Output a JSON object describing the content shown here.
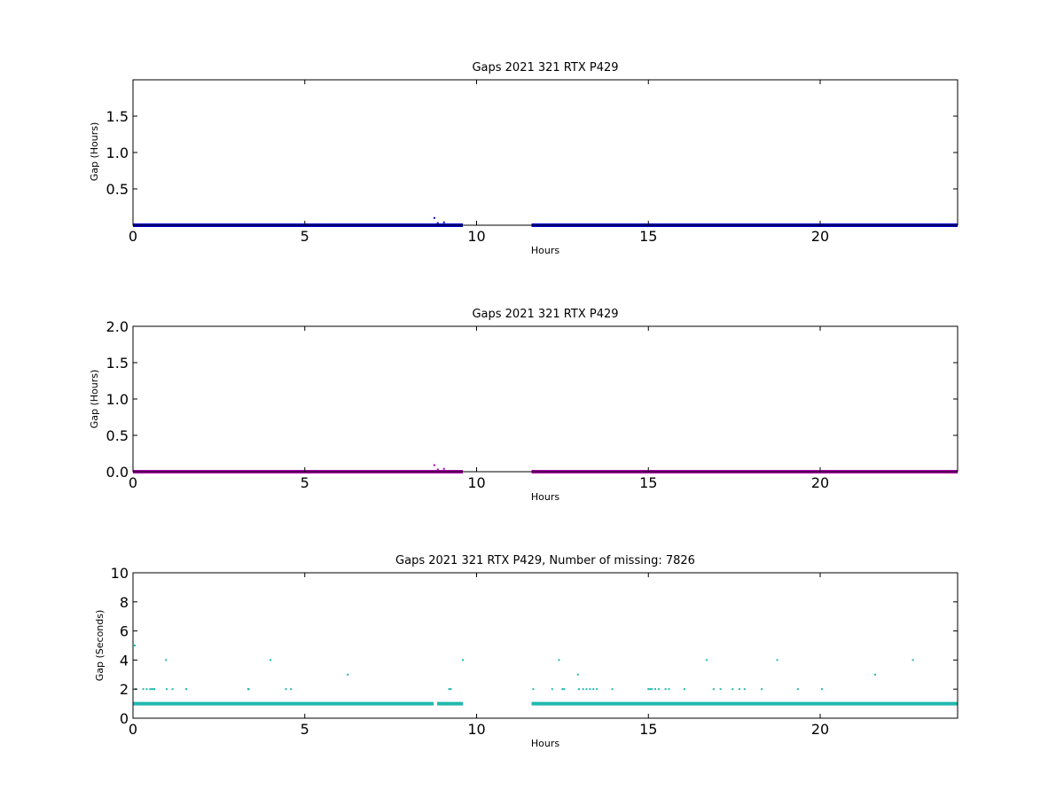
{
  "chart_data": [
    {
      "type": "scatter",
      "title": "Gaps 2021 321 RTX  P429",
      "xlabel": "Hours",
      "ylabel": "Gap (Hours)",
      "xlim": [
        0,
        24
      ],
      "ylim": [
        0,
        2.0
      ],
      "x_ticks": [
        "0",
        "5",
        "10",
        "15",
        "20"
      ],
      "y_ticks": [
        "0.5",
        "1.0",
        "1.5"
      ],
      "grid": false,
      "series": [
        {
          "color": "#0000cc",
          "segments": [
            {
              "x_start": 0.0,
              "x_end": 9.6,
              "y": 0.0
            },
            {
              "x_start": 11.6,
              "x_end": 24.0,
              "y": 0.0
            }
          ],
          "points": [
            {
              "x": 8.77,
              "y": 0.1
            },
            {
              "x": 8.87,
              "y": 0.03
            },
            {
              "x": 9.05,
              "y": 0.04
            }
          ]
        }
      ]
    },
    {
      "type": "scatter",
      "title": "Gaps 2021 321 RTX  P429",
      "xlabel": "Hours",
      "ylabel": "Gap (Hours)",
      "xlim": [
        0,
        24
      ],
      "ylim": [
        0,
        2.0
      ],
      "x_ticks": [
        "0",
        "5",
        "10",
        "15",
        "20"
      ],
      "y_ticks": [
        "0.0",
        "0.5",
        "1.0",
        "1.5",
        "2.0"
      ],
      "grid": false,
      "series": [
        {
          "color": "#aa00aa",
          "segments": [
            {
              "x_start": 0.0,
              "x_end": 9.6,
              "y": 0.0
            },
            {
              "x_start": 11.6,
              "x_end": 24.0,
              "y": 0.0
            }
          ],
          "points": [
            {
              "x": 8.77,
              "y": 0.09
            },
            {
              "x": 8.87,
              "y": 0.03
            },
            {
              "x": 9.05,
              "y": 0.04
            }
          ]
        }
      ]
    },
    {
      "type": "scatter",
      "title": "Gaps 2021 321 RTX  P429, Number of missing: 7826",
      "xlabel": "Hours",
      "ylabel": "Gap (Seconds)",
      "xlim": [
        0,
        24
      ],
      "ylim": [
        0,
        10
      ],
      "x_ticks": [
        "0",
        "5",
        "10",
        "15",
        "20"
      ],
      "y_ticks": [
        "0",
        "2",
        "4",
        "6",
        "8",
        "10"
      ],
      "grid": false,
      "series": [
        {
          "color": "#20b8b0",
          "segments": [
            {
              "x_start": 0.0,
              "x_end": 8.75,
              "y": 1
            },
            {
              "x_start": 8.85,
              "x_end": 9.6,
              "y": 1
            },
            {
              "x_start": 11.6,
              "x_end": 24.0,
              "y": 1
            }
          ],
          "points": [
            {
              "x": 0.05,
              "y": 5
            },
            {
              "x": 0.08,
              "y": 2
            },
            {
              "x": 0.3,
              "y": 2
            },
            {
              "x": 0.4,
              "y": 2
            },
            {
              "x": 0.5,
              "y": 2
            },
            {
              "x": 0.55,
              "y": 2
            },
            {
              "x": 0.6,
              "y": 2
            },
            {
              "x": 0.62,
              "y": 2
            },
            {
              "x": 0.96,
              "y": 4
            },
            {
              "x": 0.98,
              "y": 2
            },
            {
              "x": 1.15,
              "y": 2
            },
            {
              "x": 1.55,
              "y": 2
            },
            {
              "x": 3.35,
              "y": 2
            },
            {
              "x": 3.37,
              "y": 2
            },
            {
              "x": 4.0,
              "y": 4
            },
            {
              "x": 4.45,
              "y": 2
            },
            {
              "x": 4.6,
              "y": 2
            },
            {
              "x": 6.25,
              "y": 3
            },
            {
              "x": 9.2,
              "y": 2
            },
            {
              "x": 9.25,
              "y": 2
            },
            {
              "x": 9.6,
              "y": 4
            },
            {
              "x": 11.65,
              "y": 2
            },
            {
              "x": 12.2,
              "y": 2
            },
            {
              "x": 12.4,
              "y": 4
            },
            {
              "x": 12.5,
              "y": 2
            },
            {
              "x": 12.55,
              "y": 2
            },
            {
              "x": 12.95,
              "y": 3
            },
            {
              "x": 12.98,
              "y": 2
            },
            {
              "x": 13.1,
              "y": 2
            },
            {
              "x": 13.2,
              "y": 2
            },
            {
              "x": 13.3,
              "y": 2
            },
            {
              "x": 13.4,
              "y": 2
            },
            {
              "x": 13.5,
              "y": 2
            },
            {
              "x": 13.95,
              "y": 2
            },
            {
              "x": 15.0,
              "y": 2
            },
            {
              "x": 15.05,
              "y": 2
            },
            {
              "x": 15.1,
              "y": 2
            },
            {
              "x": 15.2,
              "y": 2
            },
            {
              "x": 15.3,
              "y": 2
            },
            {
              "x": 15.5,
              "y": 2
            },
            {
              "x": 15.6,
              "y": 2
            },
            {
              "x": 16.05,
              "y": 2
            },
            {
              "x": 16.7,
              "y": 4
            },
            {
              "x": 16.9,
              "y": 2
            },
            {
              "x": 17.1,
              "y": 2
            },
            {
              "x": 17.45,
              "y": 2
            },
            {
              "x": 17.65,
              "y": 2
            },
            {
              "x": 17.8,
              "y": 2
            },
            {
              "x": 18.3,
              "y": 2
            },
            {
              "x": 18.75,
              "y": 4
            },
            {
              "x": 19.35,
              "y": 2
            },
            {
              "x": 20.05,
              "y": 2
            },
            {
              "x": 21.6,
              "y": 3
            },
            {
              "x": 22.7,
              "y": 4
            }
          ]
        }
      ]
    }
  ]
}
